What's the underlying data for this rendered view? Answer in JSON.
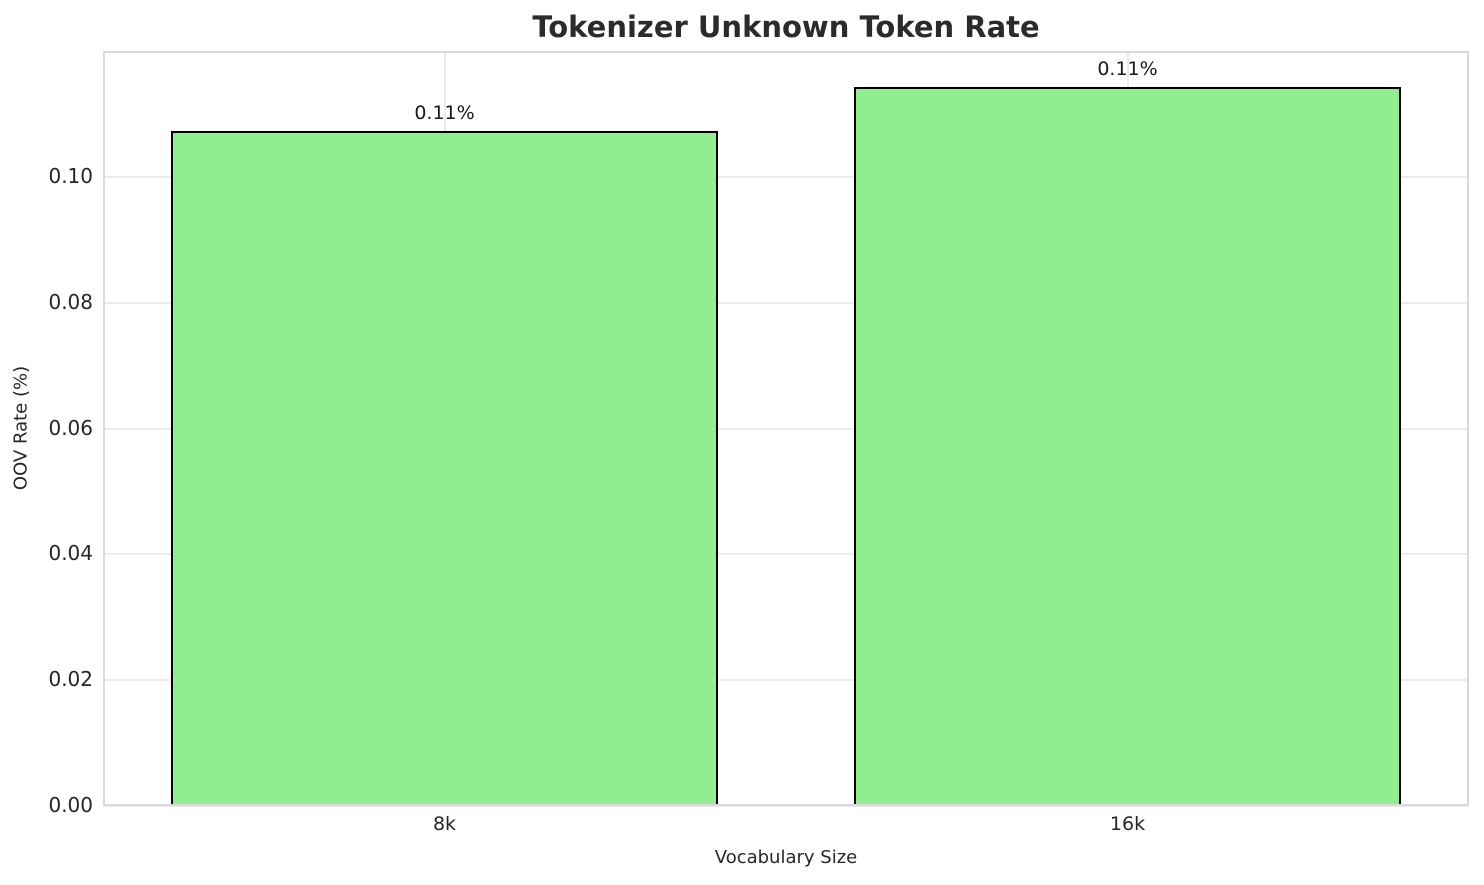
{
  "chart_data": {
    "type": "bar",
    "title": "Tokenizer Unknown Token Rate",
    "xlabel": "Vocabulary Size",
    "ylabel": "OOV Rate (%)",
    "categories": [
      "8k",
      "16k"
    ],
    "values": [
      0.1073,
      0.1142
    ],
    "bar_labels": [
      "0.11%",
      "0.11%"
    ],
    "ylim": [
      0,
      0.12
    ],
    "yticks": [
      0.0,
      0.02,
      0.04,
      0.06,
      0.08,
      0.1
    ],
    "ytick_labels": [
      "0.00",
      "0.02",
      "0.04",
      "0.06",
      "0.08",
      "0.10"
    ],
    "grid": true,
    "legend": null,
    "colors": {
      "bar_fill": "#90EE90",
      "bar_edge": "#000000",
      "grid": "#ececec",
      "spine": "#d9d9d9",
      "text": "#262626",
      "title_text": "#2b2b2b",
      "background": "#ffffff"
    }
  }
}
